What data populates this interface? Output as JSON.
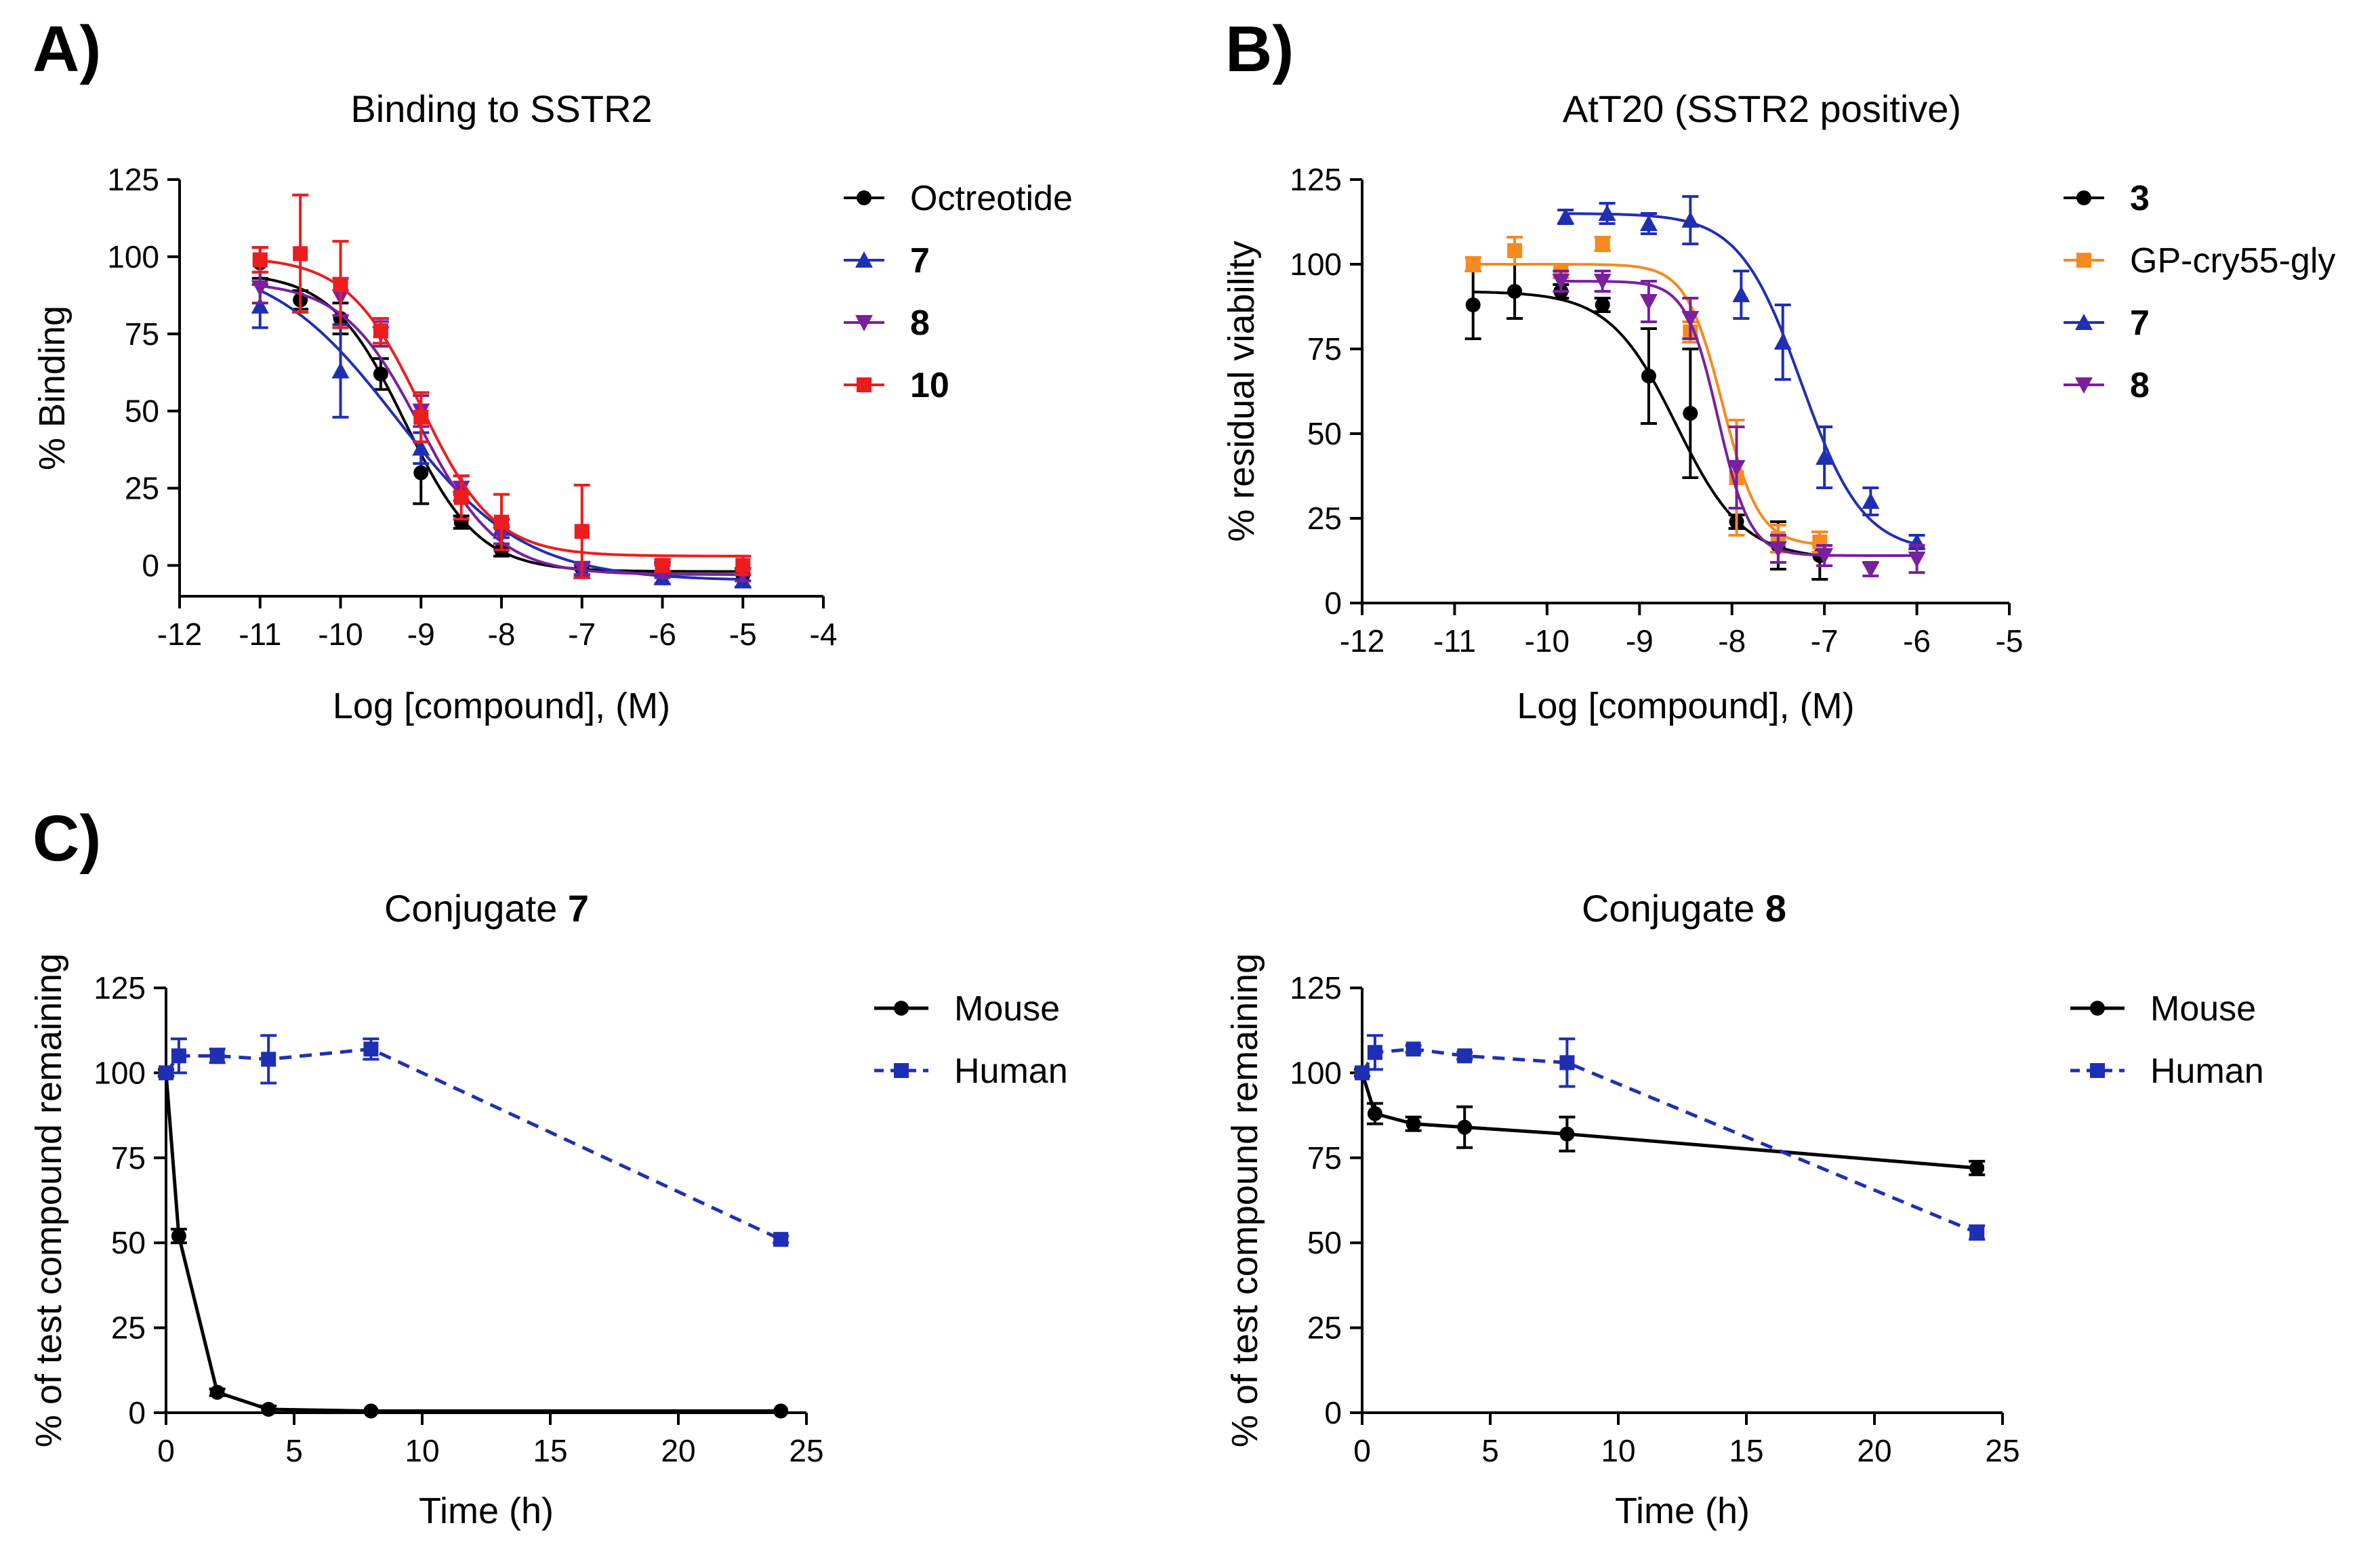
{
  "figure": {
    "panels": [
      {
        "letter": "A)"
      },
      {
        "letter": "B)"
      },
      {
        "letter": "C)"
      }
    ]
  },
  "chart_data": [
    {
      "id": "A",
      "type": "scatter",
      "title": "Binding to  SSTR2",
      "xlabel": "Log [compound], (M)",
      "ylabel": "% Binding",
      "xlim": [
        -12,
        -4
      ],
      "ylim": [
        -10,
        125
      ],
      "xticks": [
        -12,
        -11,
        -10,
        -9,
        -8,
        -7,
        -6,
        -5,
        -4
      ],
      "yticks": [
        0,
        25,
        50,
        75,
        100,
        125
      ],
      "legend_position": "right",
      "series": [
        {
          "name": "Octreotide",
          "bold": false,
          "color": "#000000",
          "marker": "circle",
          "fit": {
            "top": 95,
            "bottom": -2,
            "logec50": -9.2,
            "hill": 0.95
          },
          "points": [
            {
              "x": -11,
              "y": 98,
              "err": 5
            },
            {
              "x": -10.5,
              "y": 86,
              "err": 3
            },
            {
              "x": -10,
              "y": 80,
              "err": 5
            },
            {
              "x": -9.5,
              "y": 62,
              "err": 5
            },
            {
              "x": -9,
              "y": 30,
              "err": 10
            },
            {
              "x": -8.5,
              "y": 14,
              "err": 2
            },
            {
              "x": -8,
              "y": 5,
              "err": 2
            },
            {
              "x": -7,
              "y": -1,
              "err": 2
            },
            {
              "x": -6,
              "y": -1,
              "err": 2
            },
            {
              "x": -5,
              "y": -3,
              "err": 2
            }
          ]
        },
        {
          "name": "7",
          "bold": true,
          "color": "#1f2fb5",
          "marker": "triangle-up",
          "fit": {
            "top": 100,
            "bottom": -5,
            "logec50": -9.3,
            "hill": 0.55
          },
          "points": [
            {
              "x": -11,
              "y": 84,
              "err": 7
            },
            {
              "x": -10,
              "y": 63,
              "err": 15
            },
            {
              "x": -9,
              "y": 38,
              "err": 5
            },
            {
              "x": -8.5,
              "y": 26,
              "err": 3
            },
            {
              "x": -8,
              "y": 12,
              "err": 3
            },
            {
              "x": -7,
              "y": -2,
              "err": 2
            },
            {
              "x": -6,
              "y": -4,
              "err": 2
            },
            {
              "x": -5,
              "y": -5,
              "err": 2
            }
          ]
        },
        {
          "name": "8",
          "bold": true,
          "color": "#7a1f9e",
          "marker": "triangle-down",
          "fit": {
            "top": 92,
            "bottom": -3,
            "logec50": -9.0,
            "hill": 0.9
          },
          "points": [
            {
              "x": -11,
              "y": 90,
              "err": 5
            },
            {
              "x": -10,
              "y": 87,
              "err": 6
            },
            {
              "x": -9.5,
              "y": 75,
              "err": 4
            },
            {
              "x": -9,
              "y": 50,
              "err": 5
            },
            {
              "x": -8.5,
              "y": 25,
              "err": 4
            },
            {
              "x": -8,
              "y": 10,
              "err": 3
            },
            {
              "x": -7,
              "y": -1,
              "err": 2
            },
            {
              "x": -6,
              "y": -2,
              "err": 2
            },
            {
              "x": -5,
              "y": -3,
              "err": 2
            }
          ]
        },
        {
          "name": "10",
          "bold": true,
          "color": "#ee1c1c",
          "marker": "square",
          "fit": {
            "top": 100,
            "bottom": 3,
            "logec50": -9.0,
            "hill": 0.95
          },
          "points": [
            {
              "x": -11,
              "y": 99,
              "err": 4
            },
            {
              "x": -10.5,
              "y": 101,
              "err": 19
            },
            {
              "x": -10,
              "y": 91,
              "err": 14
            },
            {
              "x": -9.5,
              "y": 76,
              "err": 4
            },
            {
              "x": -9,
              "y": 48,
              "err": 8
            },
            {
              "x": -8.5,
              "y": 22,
              "err": 7
            },
            {
              "x": -8,
              "y": 14,
              "err": 9
            },
            {
              "x": -7,
              "y": 11,
              "err": 15
            },
            {
              "x": -6,
              "y": 0,
              "err": 2
            },
            {
              "x": -5,
              "y": 0,
              "err": 3
            }
          ]
        }
      ]
    },
    {
      "id": "B",
      "type": "scatter",
      "title": "AtT20  (SSTR2 positive)",
      "xlabel": "Log [compound], (M)",
      "ylabel": "% residual viability",
      "xlim": [
        -12,
        -5
      ],
      "ylim": [
        0,
        125
      ],
      "xticks": [
        -12,
        -11,
        -10,
        -9,
        -8,
        -7,
        -6,
        -5
      ],
      "yticks": [
        0,
        25,
        50,
        75,
        100,
        125
      ],
      "legend_position": "right",
      "series": [
        {
          "name": "3",
          "bold": true,
          "color": "#000000",
          "marker": "circle",
          "fit": {
            "top": 92,
            "bottom": 13,
            "logec50": -8.6,
            "hill": 1.2
          },
          "points": [
            {
              "x": -10.8,
              "y": 88,
              "err": 10
            },
            {
              "x": -10.35,
              "y": 92,
              "err": 8
            },
            {
              "x": -9.85,
              "y": 92,
              "err": 2
            },
            {
              "x": -9.4,
              "y": 88,
              "err": 2
            },
            {
              "x": -8.9,
              "y": 67,
              "err": 14
            },
            {
              "x": -8.45,
              "y": 56,
              "err": 19
            },
            {
              "x": -7.95,
              "y": 24,
              "err": 2
            },
            {
              "x": -7.5,
              "y": 17,
              "err": 7
            },
            {
              "x": -7.05,
              "y": 14,
              "err": 7
            }
          ]
        },
        {
          "name": "GP-cry55-gly",
          "bold": false,
          "color": "#f7891e",
          "marker": "square",
          "fit": {
            "top": 100,
            "bottom": 17,
            "logec50": -8.1,
            "hill": 2.2
          },
          "points": [
            {
              "x": -10.8,
              "y": 100,
              "err": 2
            },
            {
              "x": -10.35,
              "y": 104,
              "err": 4
            },
            {
              "x": -9.85,
              "y": 98,
              "err": 2
            },
            {
              "x": -9.4,
              "y": 106,
              "err": 2
            },
            {
              "x": -8.45,
              "y": 80,
              "err": 3
            },
            {
              "x": -7.95,
              "y": 37,
              "err": 17
            },
            {
              "x": -7.5,
              "y": 19,
              "err": 4
            },
            {
              "x": -7.05,
              "y": 18,
              "err": 3
            }
          ]
        },
        {
          "name": "7",
          "bold": true,
          "color": "#1f2fb5",
          "marker": "triangle-up",
          "fit": {
            "top": 115,
            "bottom": 15,
            "logec50": -7.25,
            "hill": 1.3
          },
          "points": [
            {
              "x": -9.8,
              "y": 114,
              "err": 2
            },
            {
              "x": -9.35,
              "y": 115,
              "err": 3
            },
            {
              "x": -8.9,
              "y": 112,
              "err": 3
            },
            {
              "x": -8.45,
              "y": 113,
              "err": 7
            },
            {
              "x": -7.9,
              "y": 91,
              "err": 7
            },
            {
              "x": -7.45,
              "y": 77,
              "err": 11
            },
            {
              "x": -7.0,
              "y": 43,
              "err": 9
            },
            {
              "x": -6.5,
              "y": 30,
              "err": 4
            },
            {
              "x": -6.0,
              "y": 18,
              "err": 2
            }
          ]
        },
        {
          "name": "8",
          "bold": true,
          "color": "#7a1f9e",
          "marker": "triangle-down",
          "fit": {
            "top": 95,
            "bottom": 14,
            "logec50": -8.15,
            "hill": 2.5
          },
          "points": [
            {
              "x": -9.85,
              "y": 95,
              "err": 3
            },
            {
              "x": -9.4,
              "y": 95,
              "err": 3
            },
            {
              "x": -8.9,
              "y": 89,
              "err": 6
            },
            {
              "x": -8.45,
              "y": 84,
              "err": 6
            },
            {
              "x": -7.95,
              "y": 40,
              "err": 12
            },
            {
              "x": -7.5,
              "y": 16,
              "err": 4
            },
            {
              "x": -7.0,
              "y": 14,
              "err": 3
            },
            {
              "x": -6.5,
              "y": 10,
              "err": 2
            },
            {
              "x": -6.0,
              "y": 13,
              "err": 4
            }
          ]
        }
      ]
    },
    {
      "id": "C1",
      "type": "line",
      "title": "Conjugate ",
      "title_bold": "7",
      "xlabel": "Time (h)",
      "ylabel": "% of test compound remaining",
      "xlim": [
        0,
        25
      ],
      "ylim": [
        0,
        125
      ],
      "xticks": [
        0,
        5,
        10,
        15,
        20,
        25
      ],
      "yticks": [
        0,
        25,
        50,
        75,
        100,
        125
      ],
      "legend_position": "right",
      "series": [
        {
          "name": "Mouse",
          "color": "#000000",
          "marker": "circle",
          "dashed": false,
          "points": [
            {
              "x": 0,
              "y": 100,
              "err": 1
            },
            {
              "x": 0.5,
              "y": 52,
              "err": 2
            },
            {
              "x": 2,
              "y": 6,
              "err": 1
            },
            {
              "x": 4,
              "y": 1,
              "err": 1
            },
            {
              "x": 8,
              "y": 0.5,
              "err": 0
            },
            {
              "x": 24,
              "y": 0.5,
              "err": 0
            }
          ]
        },
        {
          "name": "Human",
          "color": "#1f2fb5",
          "marker": "square",
          "dashed": true,
          "points": [
            {
              "x": 0,
              "y": 100,
              "err": 0
            },
            {
              "x": 0.5,
              "y": 105,
              "err": 5
            },
            {
              "x": 2,
              "y": 105,
              "err": 2
            },
            {
              "x": 4,
              "y": 104,
              "err": 7
            },
            {
              "x": 8,
              "y": 107,
              "err": 3
            },
            {
              "x": 24,
              "y": 51,
              "err": 1
            }
          ]
        }
      ]
    },
    {
      "id": "C2",
      "type": "line",
      "title": "Conjugate ",
      "title_bold": "8",
      "xlabel": "Time (h)",
      "ylabel": "% of test compound remaining",
      "xlim": [
        0,
        25
      ],
      "ylim": [
        0,
        125
      ],
      "xticks": [
        0,
        5,
        10,
        15,
        20,
        25
      ],
      "yticks": [
        0,
        25,
        50,
        75,
        100,
        125
      ],
      "legend_position": "right",
      "series": [
        {
          "name": "Mouse",
          "color": "#000000",
          "marker": "circle",
          "dashed": false,
          "points": [
            {
              "x": 0,
              "y": 100,
              "err": 1
            },
            {
              "x": 0.5,
              "y": 88,
              "err": 3
            },
            {
              "x": 2,
              "y": 85,
              "err": 2
            },
            {
              "x": 4,
              "y": 84,
              "err": 6
            },
            {
              "x": 8,
              "y": 82,
              "err": 5
            },
            {
              "x": 24,
              "y": 72,
              "err": 2
            }
          ]
        },
        {
          "name": "Human",
          "color": "#1f2fb5",
          "marker": "square",
          "dashed": true,
          "points": [
            {
              "x": 0,
              "y": 100,
              "err": 0
            },
            {
              "x": 0.5,
              "y": 106,
              "err": 5
            },
            {
              "x": 2,
              "y": 107,
              "err": 1
            },
            {
              "x": 4,
              "y": 105,
              "err": 1
            },
            {
              "x": 8,
              "y": 103,
              "err": 7
            },
            {
              "x": 24,
              "y": 53,
              "err": 2
            }
          ]
        }
      ]
    }
  ]
}
